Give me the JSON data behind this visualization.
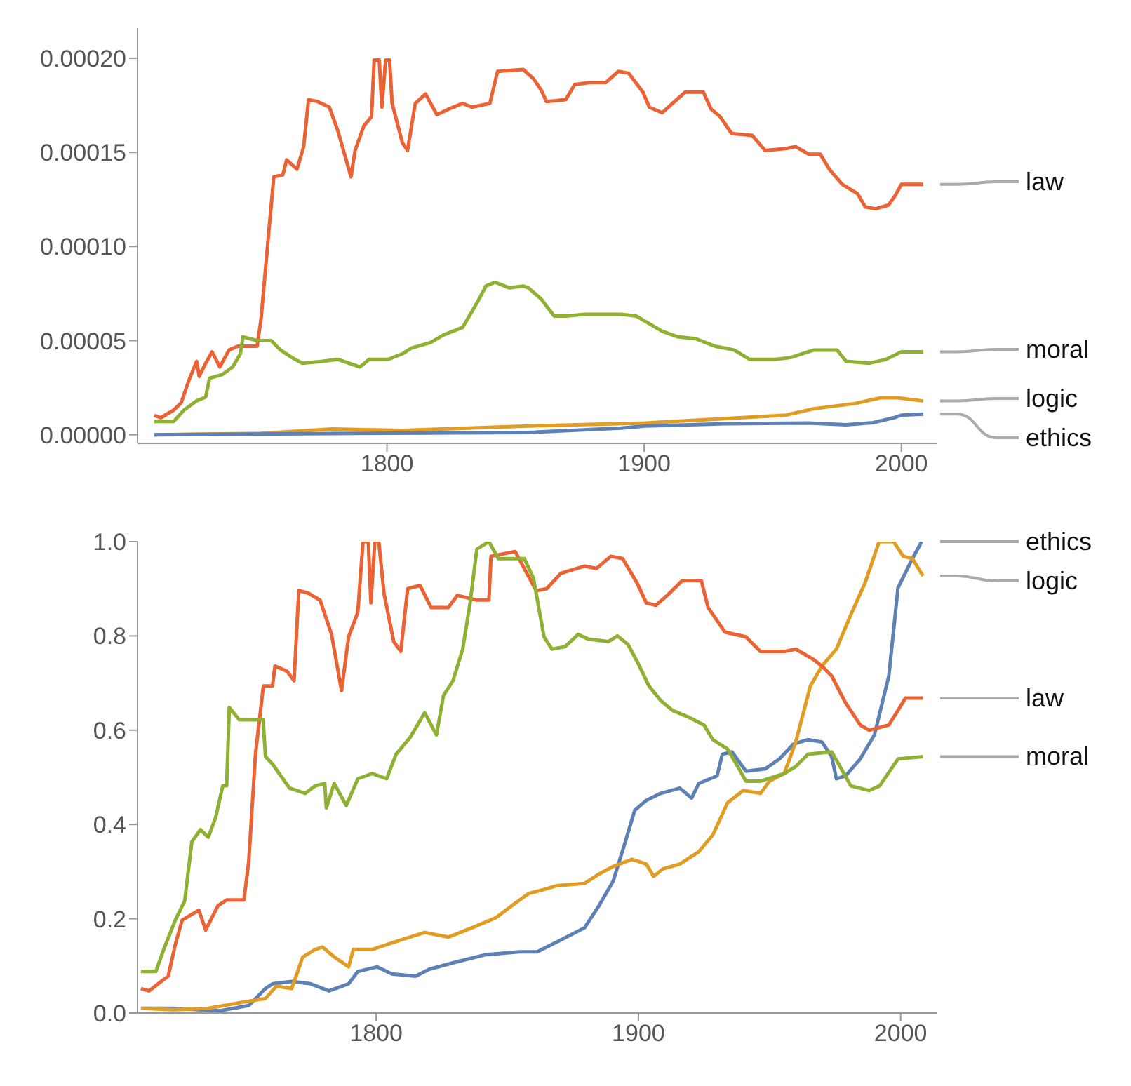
{
  "chart_data": [
    {
      "type": "line",
      "legend": "right",
      "xlim": [
        1703,
        2014
      ],
      "xticks": [
        1800,
        1900,
        2000
      ],
      "ylim": [
        -4.6e-06,
        0.000216
      ],
      "yticks": [
        {
          "value": 0,
          "label": "0.00000"
        },
        {
          "value": 5e-05,
          "label": "0.00005"
        },
        {
          "value": 0.0001,
          "label": "0.00010"
        },
        {
          "value": 0.00015,
          "label": "0.00015"
        },
        {
          "value": 0.0002,
          "label": "0.00020"
        }
      ],
      "series": [
        {
          "name": "law",
          "color": "#eb6235",
          "x": [
            1709.5,
            1712,
            1717,
            1720,
            1723,
            1726,
            1727,
            1729.5,
            1732,
            1735,
            1738.6,
            1742,
            1749.5,
            1751,
            1754,
            1756,
            1759.5,
            1761,
            1765,
            1767.6,
            1769.5,
            1773,
            1777.6,
            1781,
            1786,
            1787.6,
            1791,
            1794,
            1795,
            1797,
            1798,
            1799.5,
            1801,
            1802,
            1806,
            1808,
            1811,
            1815,
            1819.4,
            1824,
            1829.4,
            1833,
            1840,
            1843,
            1853,
            1857,
            1860,
            1862,
            1869.5,
            1873,
            1878.6,
            1885,
            1890,
            1894,
            1899.5,
            1902,
            1907,
            1911,
            1916,
            1923,
            1926,
            1929.5,
            1934,
            1942,
            1947,
            1955,
            1959,
            1964,
            1968.5,
            1972,
            1977,
            1983,
            1986,
            1990,
            1995,
            1997.6,
            2000,
            2008.5
          ],
          "values": [
            1.03e-05,
            9e-06,
            1.3e-05,
            1.7e-05,
            2.9e-05,
            3.9e-05,
            3.1e-05,
            3.8e-05,
            4.4e-05,
            3.6e-05,
            4.5e-05,
            4.7e-05,
            4.7e-05,
            6.1e-05,
            0.000107,
            0.000137,
            0.000138,
            0.000146,
            0.000141,
            0.000153,
            0.000178,
            0.000177,
            0.000174,
            0.000161,
            0.000137,
            0.000151,
            0.000164,
            0.000169,
            0.000199,
            0.000199,
            0.000174,
            0.000199,
            0.000199,
            0.000176,
            0.000155,
            0.000151,
            0.000176,
            0.000181,
            0.00017,
            0.000173,
            0.000176,
            0.000174,
            0.000176,
            0.000193,
            0.000194,
            0.000189,
            0.000183,
            0.000177,
            0.000178,
            0.000186,
            0.000187,
            0.000187,
            0.000193,
            0.000192,
            0.000182,
            0.000174,
            0.000171,
            0.000176,
            0.000182,
            0.000182,
            0.000173,
            0.000169,
            0.00016,
            0.000159,
            0.000151,
            0.000152,
            0.000153,
            0.000149,
            0.000149,
            0.000141,
            0.000133,
            0.000128,
            0.000121,
            0.00012,
            0.000122,
            0.000127,
            0.000133,
            0.000133
          ]
        },
        {
          "name": "moral",
          "color": "#8fb032",
          "x": [
            1709.5,
            1717,
            1721,
            1726,
            1729.5,
            1731,
            1736,
            1740,
            1743,
            1744,
            1749.5,
            1755,
            1758.6,
            1763,
            1767,
            1775,
            1781,
            1789.5,
            1793,
            1800.4,
            1806,
            1809.5,
            1817,
            1822,
            1829.4,
            1835,
            1838.5,
            1842,
            1847.6,
            1853,
            1855,
            1860,
            1865,
            1869.5,
            1877,
            1891,
            1897,
            1902,
            1907,
            1913,
            1920,
            1927.6,
            1935,
            1941,
            1951,
            1957,
            1966,
            1975,
            1978.5,
            1987.6,
            1994,
            2000,
            2008.5
          ],
          "values": [
            7e-06,
            7e-06,
            1.3e-05,
            1.8e-05,
            2e-05,
            3e-05,
            3.2e-05,
            3.6e-05,
            4.3e-05,
            5.2e-05,
            5e-05,
            5e-05,
            4.5e-05,
            4.1e-05,
            3.8e-05,
            3.9e-05,
            4e-05,
            3.6e-05,
            4e-05,
            4e-05,
            4.3e-05,
            4.6e-05,
            4.9e-05,
            5.3e-05,
            5.7e-05,
            7e-05,
            7.9e-05,
            8.1e-05,
            7.8e-05,
            7.9e-05,
            7.8e-05,
            7.2e-05,
            6.3e-05,
            6.3e-05,
            6.4e-05,
            6.4e-05,
            6.3e-05,
            5.9e-05,
            5.5e-05,
            5.2e-05,
            5.1e-05,
            4.7e-05,
            4.5e-05,
            4e-05,
            4e-05,
            4.1e-05,
            4.5e-05,
            4.5e-05,
            3.9e-05,
            3.8e-05,
            4e-05,
            4.4e-05,
            4.4e-05
          ]
        },
        {
          "name": "logic",
          "color": "#e19c24",
          "x": [
            1709.5,
            1751,
            1778.6,
            1806,
            1855,
            1900.4,
            1931,
            1955,
            1966,
            1982,
            1992,
            1998.5,
            2008.5
          ],
          "values": [
            0,
            7e-07,
            3e-06,
            2.3e-06,
            4.6e-06,
            6.2e-06,
            8.5e-06,
            1.04e-05,
            1.38e-05,
            1.66e-05,
            1.96e-05,
            1.96e-05,
            1.79e-05
          ]
        },
        {
          "name": "ethics",
          "color": "#5e81b5",
          "x": [
            1709.5,
            1787.6,
            1855,
            1891,
            1900.4,
            1931,
            1964,
            1978.5,
            1989,
            1997.6,
            2000,
            2008.5
          ],
          "values": [
            0,
            7e-07,
            1.2e-06,
            3.5e-06,
            4.6e-06,
            5.8e-06,
            6.2e-06,
            5.3e-06,
            6.4e-06,
            9.2e-06,
            1.04e-05,
            1.1e-05
          ]
        }
      ]
    },
    {
      "type": "line",
      "legend": "right",
      "xlim": [
        1709,
        2014
      ],
      "xticks": [
        1800,
        1900,
        2000
      ],
      "ylim": [
        0,
        1
      ],
      "yticks": [
        {
          "value": 0,
          "label": "0.0"
        },
        {
          "value": 0.2,
          "label": "0.2"
        },
        {
          "value": 0.4,
          "label": "0.4"
        },
        {
          "value": 0.6,
          "label": "0.6"
        },
        {
          "value": 0.8,
          "label": "0.8"
        },
        {
          "value": 1,
          "label": "1.0"
        }
      ],
      "series": [
        {
          "name": "ethics",
          "color": "#5e81b5",
          "x": [
            1710.3,
            1722.5,
            1740.6,
            1751.4,
            1757.8,
            1760.5,
            1767.8,
            1775,
            1782,
            1789.5,
            1793,
            1800.4,
            1806,
            1815,
            1820.3,
            1831,
            1842,
            1854.7,
            1861.4,
            1870.5,
            1879.5,
            1885,
            1890.4,
            1895,
            1898.6,
            1903,
            1908.5,
            1915.8,
            1920.3,
            1923,
            1930,
            1932,
            1935.7,
            1941,
            1948.4,
            1953.8,
            1959,
            1964.7,
            1970,
            1973.7,
            1975.5,
            1979,
            1984.6,
            1990,
            1995.5,
            1999,
            2004.5,
            2008
          ],
          "values": [
            0.01,
            0.01,
            0.005,
            0.016,
            0.052,
            0.062,
            0.067,
            0.062,
            0.047,
            0.062,
            0.088,
            0.098,
            0.083,
            0.078,
            0.093,
            0.109,
            0.124,
            0.13,
            0.13,
            0.155,
            0.181,
            0.228,
            0.28,
            0.363,
            0.43,
            0.451,
            0.466,
            0.477,
            0.456,
            0.487,
            0.503,
            0.549,
            0.554,
            0.513,
            0.518,
            0.539,
            0.57,
            0.58,
            0.575,
            0.544,
            0.497,
            0.503,
            0.539,
            0.59,
            0.715,
            0.902,
            0.964,
            1.0
          ]
        },
        {
          "name": "logic",
          "color": "#e19c24",
          "x": [
            1710.3,
            1722.5,
            1736,
            1747,
            1757.8,
            1762,
            1767.8,
            1772,
            1776.8,
            1779.5,
            1784,
            1789.5,
            1791.3,
            1798.5,
            1809.4,
            1818.5,
            1827.5,
            1836.6,
            1845.6,
            1853,
            1858.3,
            1864,
            1868.7,
            1879.5,
            1885,
            1890.4,
            1897.6,
            1903,
            1905.8,
            1909.4,
            1915.8,
            1923,
            1928.4,
            1934,
            1940,
            1946.6,
            1950,
            1955.6,
            1960,
            1965.6,
            1970,
            1975.5,
            1981,
            1986.4,
            1991.8,
            1997.3,
            2001,
            2004.5,
            2008.5
          ],
          "values": [
            0.01,
            0.007,
            0.01,
            0.021,
            0.031,
            0.057,
            0.052,
            0.119,
            0.135,
            0.14,
            0.119,
            0.098,
            0.135,
            0.135,
            0.155,
            0.171,
            0.161,
            0.181,
            0.202,
            0.233,
            0.254,
            0.262,
            0.27,
            0.275,
            0.295,
            0.311,
            0.326,
            0.316,
            0.29,
            0.306,
            0.316,
            0.342,
            0.378,
            0.446,
            0.472,
            0.466,
            0.492,
            0.508,
            0.575,
            0.694,
            0.736,
            0.772,
            0.845,
            0.912,
            1.0,
            1.0,
            0.969,
            0.964,
            0.927
          ]
        },
        {
          "name": "law",
          "color": "#eb6235",
          "x": [
            1710.3,
            1713.4,
            1718,
            1720.7,
            1723.4,
            1726,
            1729,
            1732.4,
            1735,
            1739.7,
            1743,
            1749.6,
            1751.4,
            1754,
            1757,
            1760.5,
            1761.4,
            1766,
            1768.7,
            1770.5,
            1774,
            1778.6,
            1783,
            1786.8,
            1789.5,
            1793,
            1795,
            1797,
            1798,
            1799.5,
            1801,
            1803,
            1806.7,
            1809.4,
            1812,
            1816.7,
            1821,
            1827.5,
            1831,
            1838.4,
            1843,
            1843.8,
            1853,
            1861,
            1865,
            1870.5,
            1879.5,
            1884,
            1889.5,
            1894,
            1899.5,
            1903,
            1906.7,
            1911,
            1916.7,
            1924,
            1926.6,
            1933,
            1941,
            1946.5,
            1955.6,
            1960,
            1966.5,
            1970,
            1973.7,
            1979,
            1984.6,
            1988,
            1995.5,
            1999,
            2001.8,
            2008.5
          ],
          "values": [
            0.052,
            0.047,
            0.067,
            0.078,
            0.145,
            0.197,
            0.207,
            0.218,
            0.176,
            0.228,
            0.24,
            0.24,
            0.321,
            0.55,
            0.694,
            0.694,
            0.736,
            0.725,
            0.705,
            0.896,
            0.891,
            0.876,
            0.803,
            0.684,
            0.798,
            0.85,
            1.0,
            1.0,
            0.87,
            1.0,
            1.0,
            0.89,
            0.788,
            0.767,
            0.9,
            0.907,
            0.86,
            0.86,
            0.886,
            0.876,
            0.876,
            0.969,
            0.979,
            0.896,
            0.9,
            0.933,
            0.948,
            0.943,
            0.969,
            0.964,
            0.912,
            0.87,
            0.865,
            0.886,
            0.917,
            0.917,
            0.86,
            0.808,
            0.798,
            0.767,
            0.767,
            0.772,
            0.751,
            0.736,
            0.715,
            0.658,
            0.611,
            0.6,
            0.611,
            0.642,
            0.668,
            0.668
          ]
        },
        {
          "name": "moral",
          "color": "#8fb032",
          "x": [
            1710.3,
            1716,
            1719,
            1723.4,
            1727,
            1729.7,
            1733,
            1736,
            1738.8,
            1741.5,
            1743,
            1744,
            1747.8,
            1756.9,
            1757.8,
            1760.5,
            1767,
            1773,
            1776.8,
            1780.4,
            1781,
            1784,
            1788.6,
            1793,
            1798.5,
            1804,
            1807.6,
            1813,
            1818.5,
            1823,
            1825.7,
            1829.3,
            1833,
            1835.7,
            1838.4,
            1843,
            1846.6,
            1856.5,
            1860,
            1864,
            1867,
            1872,
            1877,
            1881,
            1888.6,
            1892,
            1896,
            1899.5,
            1904,
            1908.5,
            1913,
            1919.4,
            1925,
            1928.4,
            1934,
            1938.4,
            1941,
            1946.6,
            1955.6,
            1960,
            1964.7,
            1973.7,
            1977.4,
            1981,
            1988,
            1992,
            1999,
            2008.5
          ],
          "values": [
            0.088,
            0.088,
            0.135,
            0.197,
            0.238,
            0.363,
            0.389,
            0.373,
            0.415,
            0.482,
            0.482,
            0.648,
            0.622,
            0.622,
            0.544,
            0.528,
            0.477,
            0.466,
            0.482,
            0.487,
            0.435,
            0.487,
            0.44,
            0.497,
            0.508,
            0.497,
            0.549,
            0.585,
            0.637,
            0.59,
            0.674,
            0.705,
            0.772,
            0.865,
            0.984,
            1.0,
            0.964,
            0.964,
            0.922,
            0.798,
            0.772,
            0.777,
            0.803,
            0.793,
            0.788,
            0.8,
            0.782,
            0.746,
            0.694,
            0.663,
            0.642,
            0.627,
            0.611,
            0.58,
            0.56,
            0.518,
            0.492,
            0.492,
            0.508,
            0.523,
            0.549,
            0.554,
            0.518,
            0.482,
            0.472,
            0.482,
            0.539,
            0.544
          ]
        }
      ]
    }
  ]
}
